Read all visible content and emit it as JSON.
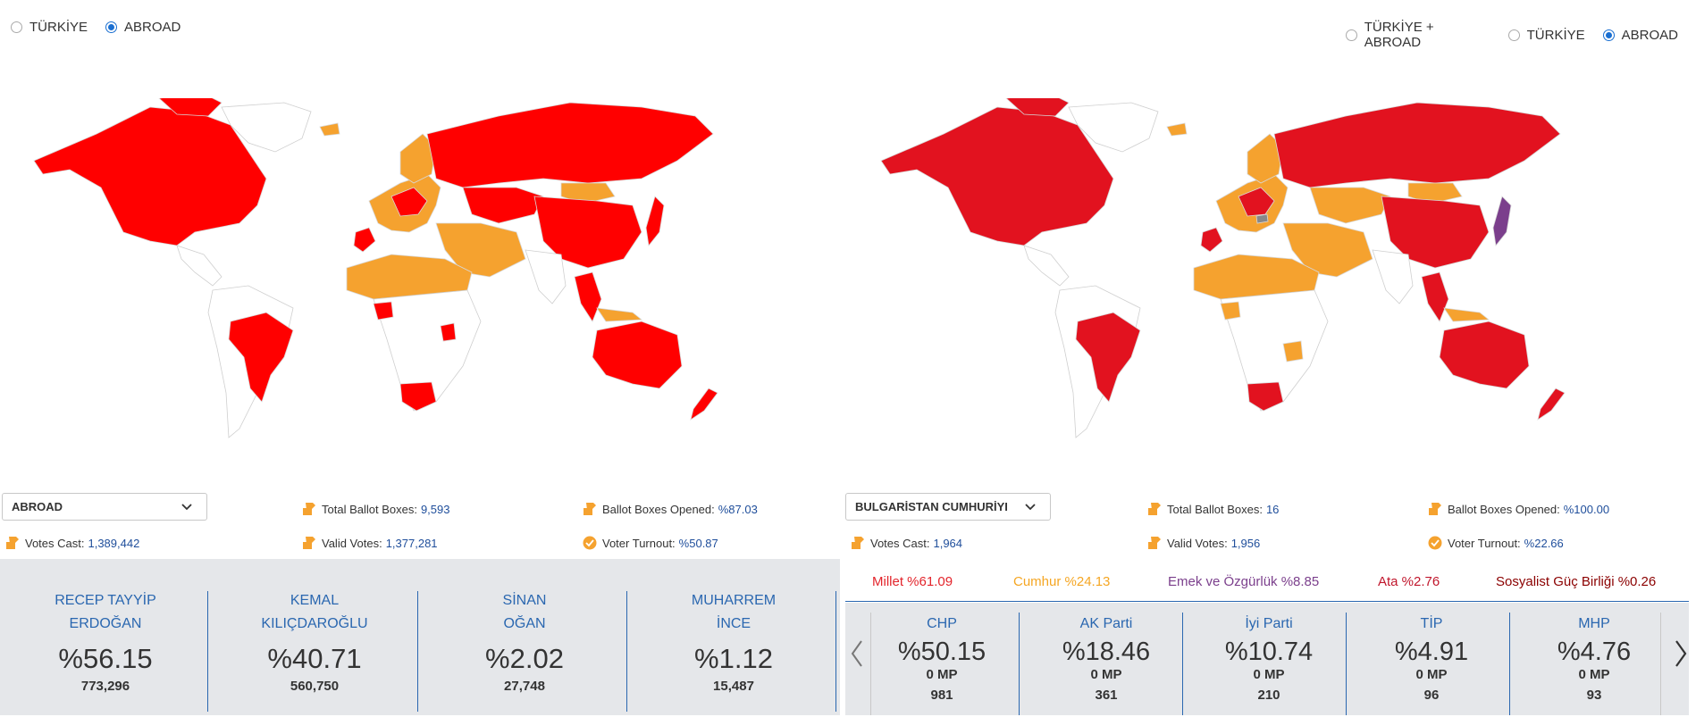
{
  "left": {
    "radios": [
      {
        "label": "TÜRKİYE",
        "checked": false
      },
      {
        "label": "ABROAD",
        "checked": true
      }
    ],
    "select_label": "ABROAD",
    "stats": {
      "total_ballot_boxes": {
        "label": "Total Ballot Boxes:",
        "value": "9,593"
      },
      "ballot_boxes_opened": {
        "label": "Ballot Boxes Opened:",
        "value": "%87.03"
      },
      "votes_cast": {
        "label": "Votes Cast:",
        "value": "1,389,442"
      },
      "valid_votes": {
        "label": "Valid Votes:",
        "value": "1,377,281"
      },
      "voter_turnout": {
        "label": "Voter Turnout:",
        "value": "%50.87"
      }
    },
    "candidates": [
      {
        "line1": "RECEP TAYYİP",
        "line2": "ERDOĞAN",
        "pct": "%56.15",
        "votes": "773,296"
      },
      {
        "line1": "KEMAL",
        "line2": "KILIÇDAROĞLU",
        "pct": "%40.71",
        "votes": "560,750"
      },
      {
        "line1": "SİNAN",
        "line2": "OĞAN",
        "pct": "%2.02",
        "votes": "27,748"
      },
      {
        "line1": "MUHARREM",
        "line2": "İNCE",
        "pct": "%1.12",
        "votes": "15,487"
      }
    ]
  },
  "right": {
    "radios": [
      {
        "label": "TÜRKİYE + ABROAD",
        "checked": false
      },
      {
        "label": "TÜRKİYE",
        "checked": false
      },
      {
        "label": "ABROAD",
        "checked": true
      }
    ],
    "select_label": "BULGARİSTAN CUMHURİYI",
    "stats": {
      "total_ballot_boxes": {
        "label": "Total Ballot Boxes:",
        "value": "16"
      },
      "ballot_boxes_opened": {
        "label": "Ballot Boxes Opened:",
        "value": "%100.00"
      },
      "votes_cast": {
        "label": "Votes Cast:",
        "value": "1,964"
      },
      "valid_votes": {
        "label": "Valid Votes:",
        "value": "1,956"
      },
      "voter_turnout": {
        "label": "Voter Turnout:",
        "value": "%22.66"
      }
    },
    "alliances": [
      {
        "label": "Millet %61.09",
        "color": "#e3242b"
      },
      {
        "label": "Cumhur %24.13",
        "color": "#f5a623"
      },
      {
        "label": "Emek ve Özgürlük %8.85",
        "color": "#7b3f8c"
      },
      {
        "label": "Ata %2.76",
        "color": "#c0162c"
      },
      {
        "label": "Sosyalist Güç Birliği %0.26",
        "color": "#8b0000"
      }
    ],
    "parties": [
      {
        "name": "CHP",
        "pct": "%50.15",
        "mp": "0 MP",
        "votes": "981"
      },
      {
        "name": "AK Parti",
        "pct": "%18.46",
        "mp": "0 MP",
        "votes": "361"
      },
      {
        "name": "İyi Parti",
        "pct": "%10.74",
        "mp": "0 MP",
        "votes": "210"
      },
      {
        "name": "TİP",
        "pct": "%4.91",
        "mp": "0 MP",
        "votes": "96"
      },
      {
        "name": "MHP",
        "pct": "%4.76",
        "mp": "0 MP",
        "votes": "93"
      }
    ]
  },
  "colors": {
    "red": "#ff0000",
    "dark_red": "#e2121f",
    "orange": "#f5a22f",
    "purple": "#7b3f8c",
    "blue": "#2a67b0",
    "panel_bg": "#e5e7ea"
  },
  "icons": {
    "ballot": "ballot-box-icon",
    "turnout": "turnout-icon",
    "chevron": "chevron-down-icon",
    "prev": "chevron-left-icon",
    "next": "chevron-right-icon"
  }
}
